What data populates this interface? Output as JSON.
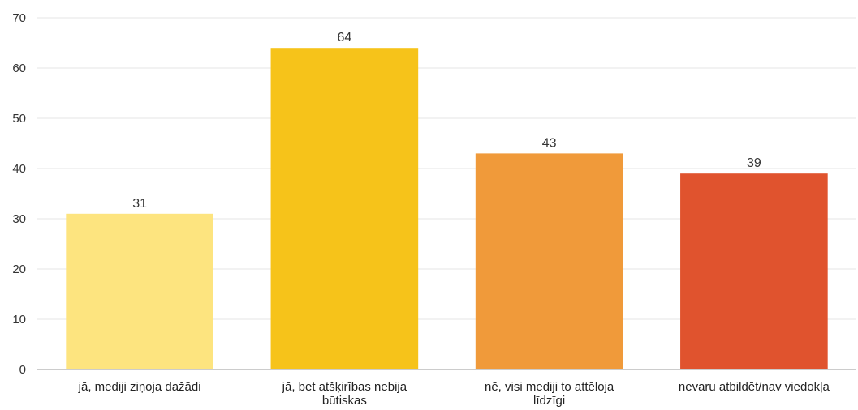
{
  "chart_data": {
    "type": "bar",
    "title": "",
    "xlabel": "",
    "ylabel": "",
    "categories": [
      [
        "jā, mediji ziņoja dažādi"
      ],
      [
        "jā, bet atšķirības nebija",
        "būtiskas"
      ],
      [
        "nē, visi mediji to attēloja",
        "līdzīgi"
      ],
      [
        "nevaru atbildēt/nav viedokļa"
      ]
    ],
    "values": [
      31,
      64,
      43,
      39
    ],
    "colors": [
      "#fde47f",
      "#f6c31a",
      "#f09a3a",
      "#e0532e"
    ],
    "ylim": [
      0,
      70
    ],
    "yticks": [
      "0",
      "10",
      "20",
      "30",
      "40",
      "50",
      "60",
      "70"
    ],
    "grid": true,
    "legend": "none"
  }
}
